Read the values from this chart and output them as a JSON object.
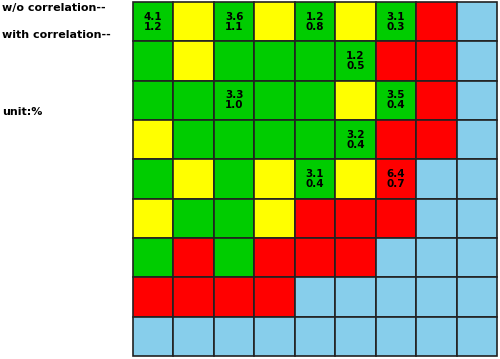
{
  "cell_colors": [
    [
      "green",
      "yellow",
      "green",
      "yellow",
      "green",
      "yellow",
      "green",
      "red",
      "light_blue"
    ],
    [
      "green",
      "yellow",
      "green",
      "green",
      "green",
      "green",
      "red",
      "red",
      "light_blue"
    ],
    [
      "green",
      "green",
      "green",
      "green",
      "green",
      "yellow",
      "green",
      "red",
      "light_blue"
    ],
    [
      "yellow",
      "green",
      "green",
      "green",
      "green",
      "green",
      "red",
      "red",
      "light_blue"
    ],
    [
      "green",
      "yellow",
      "green",
      "yellow",
      "green",
      "yellow",
      "red",
      "light_blue",
      "light_blue"
    ],
    [
      "yellow",
      "green",
      "green",
      "yellow",
      "red",
      "red",
      "red",
      "light_blue",
      "light_blue"
    ],
    [
      "green",
      "red",
      "green",
      "red",
      "red",
      "red",
      "light_blue",
      "light_blue",
      "light_blue"
    ],
    [
      "red",
      "red",
      "red",
      "red",
      "light_blue",
      "light_blue",
      "light_blue",
      "light_blue",
      "light_blue"
    ],
    [
      "light_blue",
      "light_blue",
      "light_blue",
      "light_blue",
      "light_blue",
      "light_blue",
      "light_blue",
      "light_blue",
      "light_blue"
    ]
  ],
  "cell_texts": [
    [
      [
        "4.1",
        "1.2"
      ],
      null,
      [
        "3.6",
        "1.1"
      ],
      null,
      [
        "1.2",
        "0.8"
      ],
      null,
      [
        "3.1",
        "0.3"
      ],
      null,
      null
    ],
    [
      null,
      null,
      null,
      null,
      null,
      [
        "1.2",
        "0.5"
      ],
      null,
      null,
      null
    ],
    [
      null,
      null,
      [
        "3.3",
        "1.0"
      ],
      null,
      null,
      null,
      [
        "3.5",
        "0.4"
      ],
      null,
      null
    ],
    [
      null,
      null,
      null,
      null,
      null,
      [
        "3.2",
        "0.4"
      ],
      null,
      null,
      null
    ],
    [
      null,
      null,
      null,
      null,
      [
        "3.1",
        "0.4"
      ],
      null,
      [
        "6.4",
        "0.7"
      ],
      null,
      null
    ],
    [
      null,
      null,
      null,
      null,
      null,
      null,
      null,
      null,
      null
    ],
    [
      null,
      null,
      null,
      null,
      null,
      null,
      null,
      null,
      null
    ],
    [
      null,
      null,
      null,
      null,
      null,
      null,
      null,
      null,
      null
    ],
    [
      null,
      null,
      null,
      null,
      null,
      null,
      null,
      null,
      null
    ]
  ],
  "color_map": {
    "green": "#00cc00",
    "yellow": "#ffff00",
    "red": "#ff0000",
    "light_blue": "#87ceeb"
  },
  "legend_lines": [
    "w/o correlation--",
    "with correlation--",
    "",
    "unit:%"
  ],
  "fontsize": 7.5,
  "border_color": "#222222",
  "border_linewidth": 1.2,
  "text_color": "black"
}
